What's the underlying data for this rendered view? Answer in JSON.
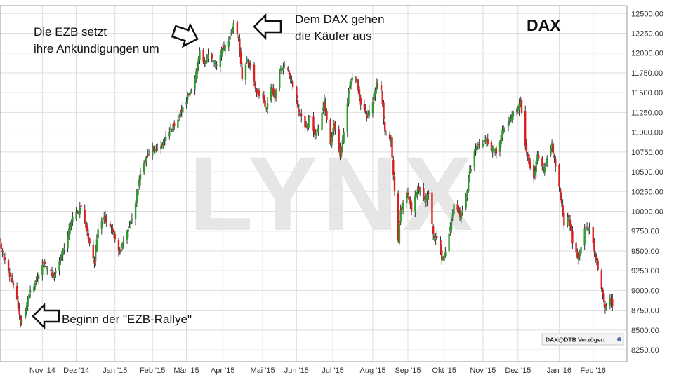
{
  "chart_data": {
    "type": "candlestick",
    "title": "DAX",
    "watermark": "LYNX",
    "source_label": "DAX@DTB Verzögert",
    "xlabel": "",
    "ylabel": "",
    "ylim": [
      8100,
      12600
    ],
    "y_ticks": [
      8250,
      8500,
      8750,
      9000,
      9250,
      9500,
      9750,
      10000,
      10250,
      10500,
      10750,
      11000,
      11250,
      11500,
      11750,
      12000,
      12250,
      12500
    ],
    "y_tick_labels": [
      "8250.00",
      "8500.00",
      "8750.00",
      "9000.00",
      "9250.00",
      "9500.00",
      "9750.00",
      "10000.00",
      "10250.00",
      "10500.00",
      "10750.00",
      "11000.00",
      "11250.00",
      "11500.00",
      "11750.00",
      "12000.00",
      "12250.00",
      "12500.00"
    ],
    "x_ticks": [
      {
        "label": "Nov '14",
        "date": "2014-11-03"
      },
      {
        "label": "Dez '14",
        "date": "2014-12-01"
      },
      {
        "label": "Jan '15",
        "date": "2015-01-02"
      },
      {
        "label": "Feb '15",
        "date": "2015-02-02"
      },
      {
        "label": "Mär '15",
        "date": "2015-03-02"
      },
      {
        "label": "Apr '15",
        "date": "2015-04-01"
      },
      {
        "label": "Mai '15",
        "date": "2015-05-04"
      },
      {
        "label": "Jun '15",
        "date": "2015-06-01"
      },
      {
        "label": "Jul '15",
        "date": "2015-07-01"
      },
      {
        "label": "Aug '15",
        "date": "2015-08-03"
      },
      {
        "label": "Sep '15",
        "date": "2015-09-01"
      },
      {
        "label": "Okt '15",
        "date": "2015-10-01"
      },
      {
        "label": "Nov '15",
        "date": "2015-11-02"
      },
      {
        "label": "Dez '15",
        "date": "2015-12-01"
      },
      {
        "label": "Jan '16",
        "date": "2016-01-04"
      },
      {
        "label": "Feb '16",
        "date": "2016-02-01"
      }
    ],
    "x_range": [
      "2014-09-29",
      "2016-02-29"
    ],
    "candle_colors": {
      "up": "#2e9b2e",
      "down": "#dd1f1f"
    },
    "close_path": [
      [
        "2014-09-29",
        9600
      ],
      [
        "2014-10-02",
        9420
      ],
      [
        "2014-10-08",
        9150
      ],
      [
        "2014-10-13",
        8880
      ],
      [
        "2014-10-16",
        8580
      ],
      [
        "2014-10-20",
        8760
      ],
      [
        "2014-10-24",
        8980
      ],
      [
        "2014-10-29",
        9120
      ],
      [
        "2014-11-03",
        9330
      ],
      [
        "2014-11-07",
        9290
      ],
      [
        "2014-11-12",
        9180
      ],
      [
        "2014-11-18",
        9400
      ],
      [
        "2014-11-24",
        9700
      ],
      [
        "2014-11-28",
        9930
      ],
      [
        "2014-12-03",
        10000
      ],
      [
        "2014-12-05",
        10080
      ],
      [
        "2014-12-09",
        9800
      ],
      [
        "2014-12-12",
        9600
      ],
      [
        "2014-12-16",
        9350
      ],
      [
        "2014-12-19",
        9800
      ],
      [
        "2014-12-23",
        9930
      ],
      [
        "2014-12-30",
        9800
      ],
      [
        "2015-01-06",
        9450
      ],
      [
        "2015-01-09",
        9650
      ],
      [
        "2015-01-14",
        9800
      ],
      [
        "2015-01-19",
        10100
      ],
      [
        "2015-01-22",
        10400
      ],
      [
        "2015-01-27",
        10650
      ],
      [
        "2015-02-02",
        10800
      ],
      [
        "2015-02-06",
        10750
      ],
      [
        "2015-02-12",
        10900
      ],
      [
        "2015-02-18",
        11050
      ],
      [
        "2015-02-24",
        11200
      ],
      [
        "2015-03-02",
        11400
      ],
      [
        "2015-03-06",
        11550
      ],
      [
        "2015-03-10",
        11750
      ],
      [
        "2015-03-13",
        12000
      ],
      [
        "2015-03-17",
        11850
      ],
      [
        "2015-03-20",
        12000
      ],
      [
        "2015-03-24",
        11900
      ],
      [
        "2015-03-27",
        11850
      ],
      [
        "2015-04-01",
        12050
      ],
      [
        "2015-04-07",
        12200
      ],
      [
        "2015-04-10",
        12370
      ],
      [
        "2015-04-14",
        12200
      ],
      [
        "2015-04-17",
        11700
      ],
      [
        "2015-04-21",
        11900
      ],
      [
        "2015-04-24",
        11800
      ],
      [
        "2015-04-29",
        11500
      ],
      [
        "2015-05-04",
        11450
      ],
      [
        "2015-05-07",
        11300
      ],
      [
        "2015-05-11",
        11600
      ],
      [
        "2015-05-14",
        11450
      ],
      [
        "2015-05-19",
        11800
      ],
      [
        "2015-05-22",
        11850
      ],
      [
        "2015-05-27",
        11700
      ],
      [
        "2015-06-01",
        11400
      ],
      [
        "2015-06-04",
        11200
      ],
      [
        "2015-06-09",
        11050
      ],
      [
        "2015-06-12",
        11200
      ],
      [
        "2015-06-16",
        10950
      ],
      [
        "2015-06-19",
        11050
      ],
      [
        "2015-06-24",
        11400
      ],
      [
        "2015-06-29",
        10850
      ],
      [
        "2015-07-02",
        11100
      ],
      [
        "2015-07-07",
        10700
      ],
      [
        "2015-07-10",
        11000
      ],
      [
        "2015-07-14",
        11500
      ],
      [
        "2015-07-17",
        11700
      ],
      [
        "2015-07-21",
        11650
      ],
      [
        "2015-07-24",
        11350
      ],
      [
        "2015-07-29",
        11200
      ],
      [
        "2015-08-03",
        11400
      ],
      [
        "2015-08-06",
        11600
      ],
      [
        "2015-08-10",
        11500
      ],
      [
        "2015-08-13",
        11000
      ],
      [
        "2015-08-18",
        10900
      ],
      [
        "2015-08-20",
        10450
      ],
      [
        "2015-08-24",
        9650
      ],
      [
        "2015-08-26",
        10000
      ],
      [
        "2015-08-31",
        10250
      ],
      [
        "2015-09-04",
        10000
      ],
      [
        "2015-09-09",
        10300
      ],
      [
        "2015-09-14",
        10150
      ],
      [
        "2015-09-18",
        10200
      ],
      [
        "2015-09-22",
        9700
      ],
      [
        "2015-09-25",
        9650
      ],
      [
        "2015-09-29",
        9400
      ],
      [
        "2015-10-02",
        9500
      ],
      [
        "2015-10-06",
        9800
      ],
      [
        "2015-10-09",
        10100
      ],
      [
        "2015-10-14",
        9950
      ],
      [
        "2015-10-19",
        10150
      ],
      [
        "2015-10-22",
        10500
      ],
      [
        "2015-10-27",
        10800
      ],
      [
        "2015-10-30",
        10850
      ],
      [
        "2015-11-04",
        10900
      ],
      [
        "2015-11-09",
        10800
      ],
      [
        "2015-11-13",
        10750
      ],
      [
        "2015-11-18",
        11000
      ],
      [
        "2015-11-23",
        11100
      ],
      [
        "2015-11-27",
        11250
      ],
      [
        "2015-12-01",
        11300
      ],
      [
        "2015-12-03",
        11400
      ],
      [
        "2015-12-07",
        10850
      ],
      [
        "2015-12-10",
        10600
      ],
      [
        "2015-12-14",
        10450
      ],
      [
        "2015-12-17",
        10700
      ],
      [
        "2015-12-22",
        10500
      ],
      [
        "2015-12-29",
        10850
      ],
      [
        "2016-01-04",
        10300
      ],
      [
        "2016-01-08",
        9850
      ],
      [
        "2016-01-12",
        9950
      ],
      [
        "2016-01-15",
        9600
      ],
      [
        "2016-01-20",
        9400
      ],
      [
        "2016-01-25",
        9750
      ],
      [
        "2016-01-29",
        9800
      ],
      [
        "2016-02-03",
        9450
      ],
      [
        "2016-02-08",
        9000
      ],
      [
        "2016-02-11",
        8800
      ],
      [
        "2016-02-15",
        8900
      ],
      [
        "2016-02-17",
        8800
      ]
    ],
    "annotations": [
      {
        "id": "ezb-announce",
        "lines": [
          "Die EZB setzt",
          "ihre Ankündigungen um"
        ]
      },
      {
        "id": "dax-peak",
        "lines": [
          "Dem DAX gehen",
          "die Käufer aus"
        ]
      },
      {
        "id": "rally-start",
        "lines": [
          "Beginn der \"EZB-Rallye\""
        ]
      }
    ]
  }
}
